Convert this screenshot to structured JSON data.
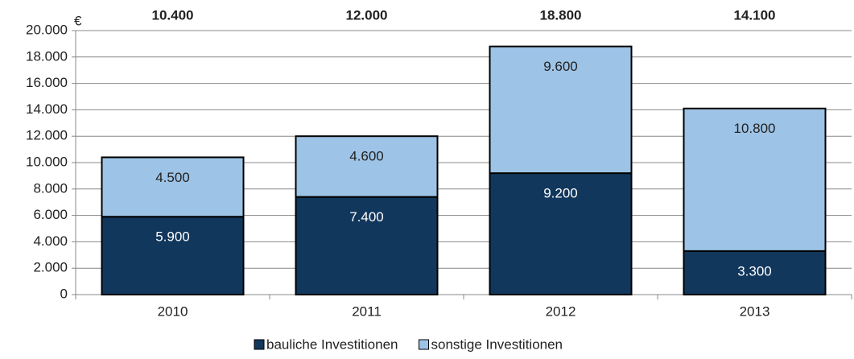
{
  "chart_data": {
    "type": "stacked_bar",
    "unit": "€",
    "categories": [
      "2010",
      "2011",
      "2012",
      "2013"
    ],
    "series": [
      {
        "name": "bauliche Investitionen",
        "color": "#12375c",
        "values": [
          5900,
          7400,
          9200,
          3300
        ],
        "value_labels": [
          "5.900",
          "7.400",
          "9.200",
          "3.300"
        ]
      },
      {
        "name": "sonstige Investitionen",
        "color": "#9dc3e6",
        "values": [
          4500,
          4600,
          9600,
          10800
        ],
        "value_labels": [
          "4.500",
          "4.600",
          "9.600",
          "10.800"
        ]
      }
    ],
    "totals": {
      "values": [
        10400,
        12000,
        18800,
        14100
      ],
      "value_labels": [
        "10.400",
        "12.000",
        "18.800",
        "14.100"
      ]
    },
    "ylim": [
      0,
      20000
    ],
    "yticks": [
      0,
      {
        "value": 2000,
        "label": "2.000"
      },
      {
        "value": 4000,
        "label": "4.000"
      },
      {
        "value": 6000,
        "label": "6.000"
      },
      {
        "value": 8000,
        "label": "8.000"
      },
      {
        "value": 10000,
        "label": "10.000"
      },
      {
        "value": 12000,
        "label": "12.000"
      },
      {
        "value": 14000,
        "label": "14.000"
      },
      {
        "value": 16000,
        "label": "16.000"
      },
      {
        "value": 18000,
        "label": "18.000"
      },
      {
        "value": 20000,
        "label": "20.000"
      }
    ],
    "grid": true,
    "legend": "bottom"
  }
}
